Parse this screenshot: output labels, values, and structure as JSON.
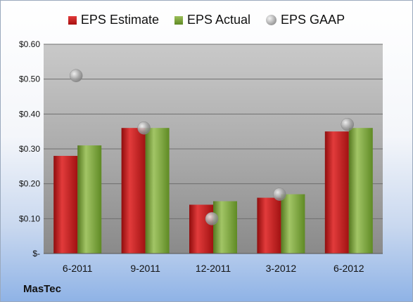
{
  "company": "MasTec",
  "legend": {
    "estimate": "EPS Estimate",
    "actual": "EPS Actual",
    "gaap": "EPS GAAP"
  },
  "colors": {
    "estimate": "#c41e1e",
    "actual": "#7aa33a",
    "gaap": "#a8a8a8"
  },
  "chart_data": {
    "type": "bar",
    "categories": [
      "6-2011",
      "9-2011",
      "12-2011",
      "3-2012",
      "6-2012"
    ],
    "series": [
      {
        "name": "EPS Estimate",
        "values": [
          0.28,
          0.36,
          0.14,
          0.16,
          0.35
        ]
      },
      {
        "name": "EPS Actual",
        "values": [
          0.31,
          0.36,
          0.15,
          0.17,
          0.36
        ]
      },
      {
        "name": "EPS GAAP",
        "type": "scatter",
        "values": [
          0.51,
          0.36,
          0.1,
          0.17,
          0.37
        ]
      }
    ],
    "yticks": [
      "$-",
      "$0.10",
      "$0.20",
      "$0.30",
      "$0.40",
      "$0.50",
      "$0.60"
    ],
    "ylim": [
      0,
      0.6
    ],
    "grid": true,
    "legend_position": "top"
  }
}
